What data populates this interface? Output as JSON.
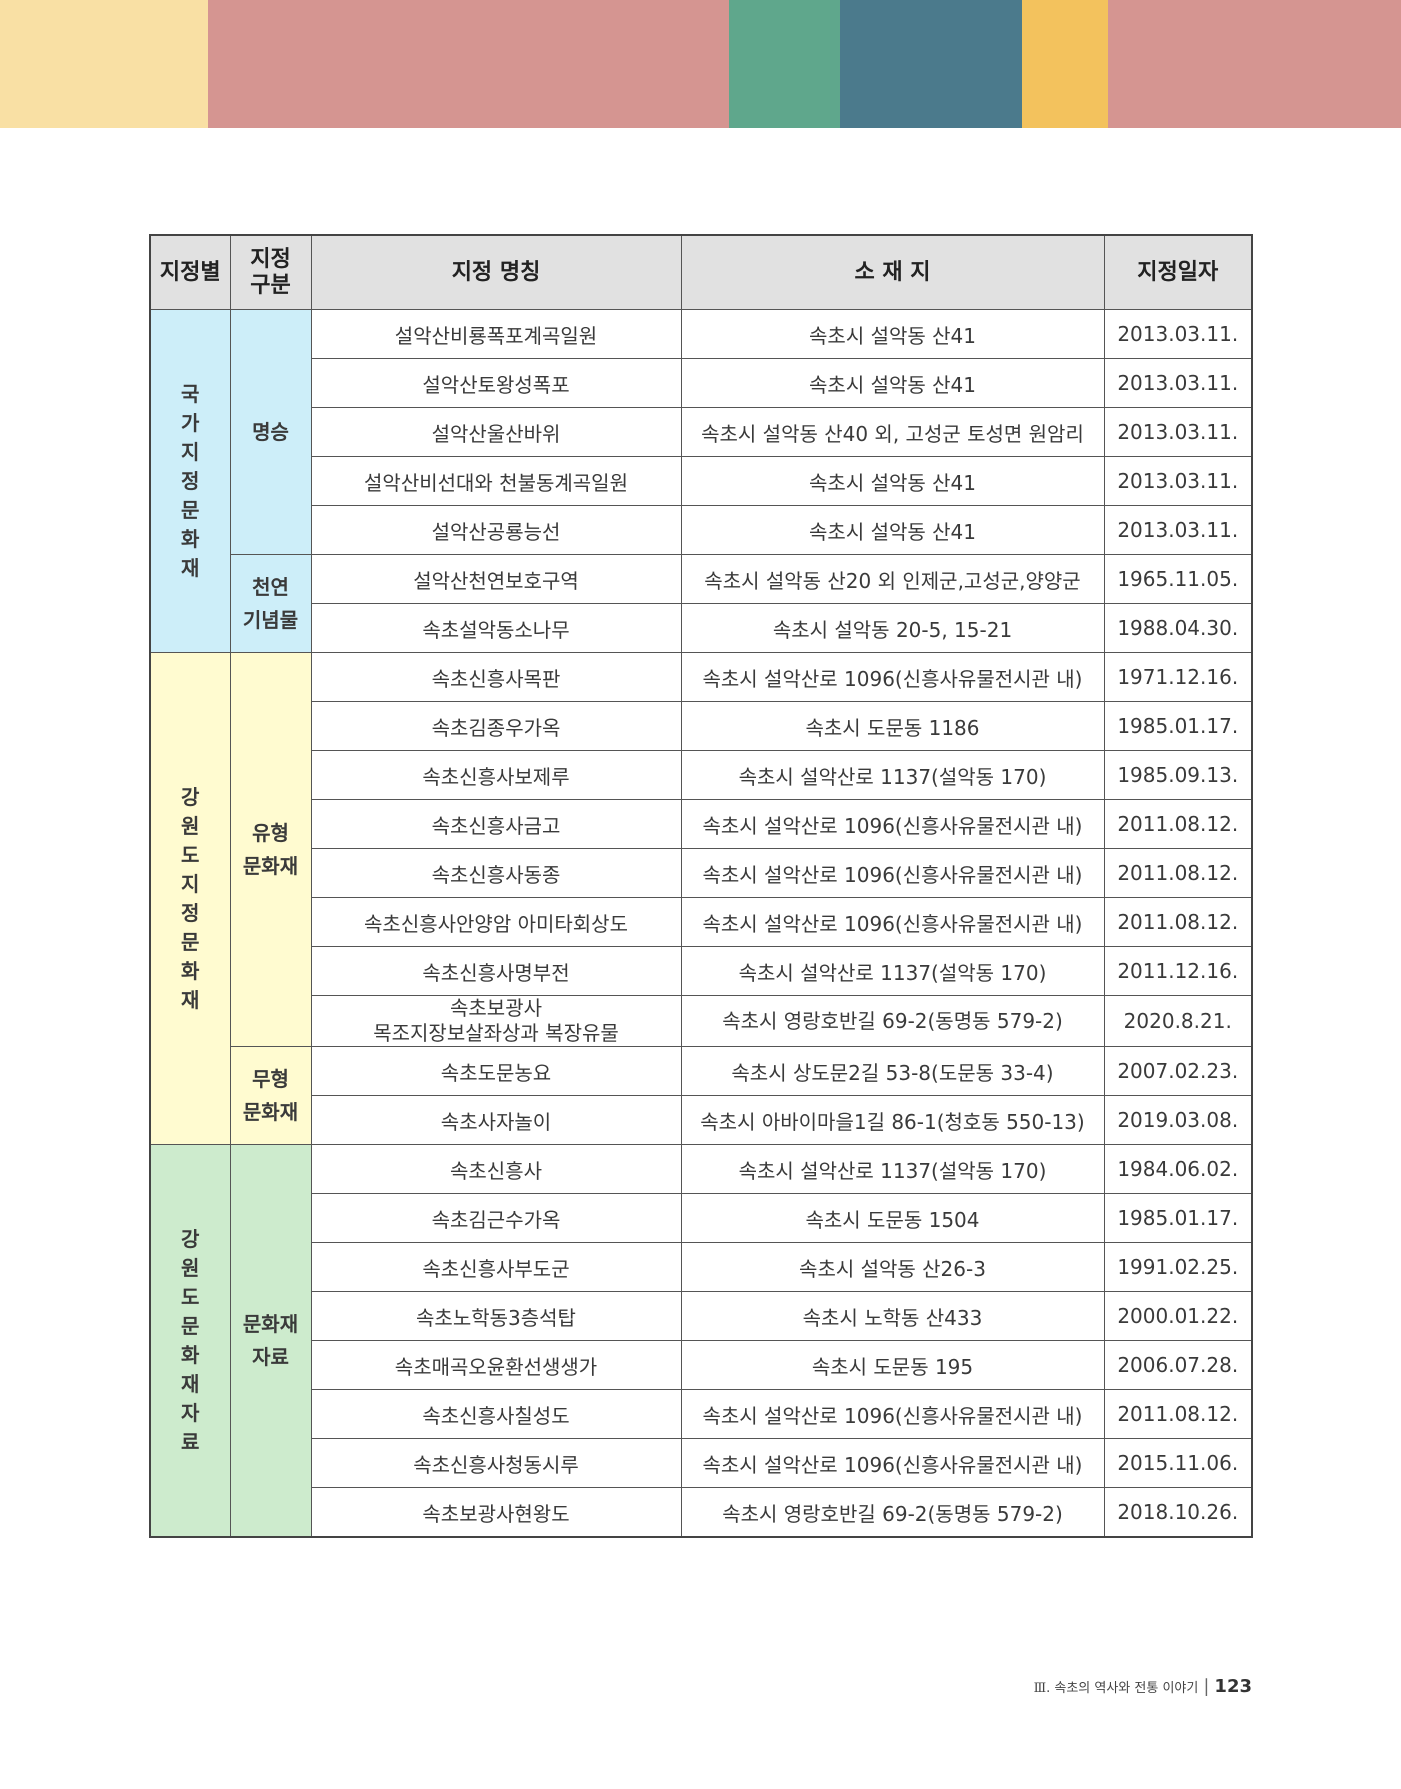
{
  "colors": {
    "top_bar": [
      "#f9e0a4",
      "#d59591",
      "#5fa78c",
      "#4b7a8c",
      "#f3c25d",
      "#d59591"
    ],
    "header_bg": "#e1e1e1",
    "group_national": "#cdeef9",
    "group_provincial": "#fffbd0",
    "group_material": "#cdebcd"
  },
  "table": {
    "headers": {
      "category": "지정별",
      "subcategory_line1": "지정",
      "subcategory_line2": "구분",
      "name": "지정 명칭",
      "location": "소 재 지",
      "date": "지정일자"
    },
    "groups": [
      {
        "category": "국가지정문화재",
        "subgroups": [
          {
            "label_lines": [
              "명승"
            ],
            "rows": [
              {
                "name": [
                  "설악산비룡폭포계곡일원"
                ],
                "location": "속초시 설악동 산41",
                "date": "2013.03.11."
              },
              {
                "name": [
                  "설악산토왕성폭포"
                ],
                "location": "속초시 설악동 산41",
                "date": "2013.03.11."
              },
              {
                "name": [
                  "설악산울산바위"
                ],
                "location": "속초시 설악동 산40 외, 고성군 토성면 원암리",
                "date": "2013.03.11."
              },
              {
                "name": [
                  "설악산비선대와 천불동계곡일원"
                ],
                "location": "속초시 설악동 산41",
                "date": "2013.03.11."
              },
              {
                "name": [
                  "설악산공룡능선"
                ],
                "location": "속초시 설악동 산41",
                "date": "2013.03.11."
              }
            ]
          },
          {
            "label_lines": [
              "천연",
              "기념물"
            ],
            "rows": [
              {
                "name": [
                  "설악산천연보호구역"
                ],
                "location": "속초시 설악동 산20 외 인제군,고성군,양양군",
                "date": "1965.11.05."
              },
              {
                "name": [
                  "속초설악동소나무"
                ],
                "location": "속초시 설악동 20-5, 15-21",
                "date": "1988.04.30."
              }
            ]
          }
        ]
      },
      {
        "category": "강원도지정문화재",
        "subgroups": [
          {
            "label_lines": [
              "유형",
              "문화재"
            ],
            "rows": [
              {
                "name": [
                  "속초신흥사목판"
                ],
                "location": "속초시 설악산로 1096(신흥사유물전시관 내)",
                "date": "1971.12.16."
              },
              {
                "name": [
                  "속초김종우가옥"
                ],
                "location": "속초시 도문동 1186",
                "date": "1985.01.17."
              },
              {
                "name": [
                  "속초신흥사보제루"
                ],
                "location": "속초시 설악산로 1137(설악동 170)",
                "date": "1985.09.13."
              },
              {
                "name": [
                  "속초신흥사금고"
                ],
                "location": "속초시 설악산로 1096(신흥사유물전시관 내)",
                "date": "2011.08.12."
              },
              {
                "name": [
                  "속초신흥사동종"
                ],
                "location": "속초시 설악산로 1096(신흥사유물전시관 내)",
                "date": "2011.08.12."
              },
              {
                "name": [
                  "속초신흥사안양암 아미타회상도"
                ],
                "location": "속초시 설악산로 1096(신흥사유물전시관 내)",
                "date": "2011.08.12."
              },
              {
                "name": [
                  "속초신흥사명부전"
                ],
                "location": "속초시 설악산로 1137(설악동 170)",
                "date": "2011.12.16."
              },
              {
                "name": [
                  "속초보광사",
                  "목조지장보살좌상과 복장유물"
                ],
                "location": "속초시 영랑호반길 69-2(동명동 579-2)",
                "date": "2020.8.21."
              }
            ]
          },
          {
            "label_lines": [
              "무형",
              "문화재"
            ],
            "rows": [
              {
                "name": [
                  "속초도문농요"
                ],
                "location": "속초시 상도문2길 53-8(도문동 33-4)",
                "date": "2007.02.23."
              },
              {
                "name": [
                  "속초사자놀이"
                ],
                "location": "속초시 아바이마을1길 86-1(청호동 550-13)",
                "date": "2019.03.08."
              }
            ]
          }
        ]
      },
      {
        "category": "강원도문화재자료",
        "subgroups": [
          {
            "label_lines": [
              "문화재",
              "자료"
            ],
            "rows": [
              {
                "name": [
                  "속초신흥사"
                ],
                "location": "속초시 설악산로 1137(설악동 170)",
                "date": "1984.06.02."
              },
              {
                "name": [
                  "속초김근수가옥"
                ],
                "location": "속초시 도문동 1504",
                "date": "1985.01.17."
              },
              {
                "name": [
                  "속초신흥사부도군"
                ],
                "location": "속초시 설악동 산26-3",
                "date": "1991.02.25."
              },
              {
                "name": [
                  "속초노학동3층석탑"
                ],
                "location": "속초시 노학동 산433",
                "date": "2000.01.22."
              },
              {
                "name": [
                  "속초매곡오윤환선생생가"
                ],
                "location": "속초시 도문동 195",
                "date": "2006.07.28."
              },
              {
                "name": [
                  "속초신흥사칠성도"
                ],
                "location": "속초시 설악산로 1096(신흥사유물전시관 내)",
                "date": "2011.08.12."
              },
              {
                "name": [
                  "속초신흥사청동시루"
                ],
                "location": "속초시 설악산로 1096(신흥사유물전시관 내)",
                "date": "2015.11.06."
              },
              {
                "name": [
                  "속초보광사현왕도"
                ],
                "location": "속초시 영랑호반길 69-2(동명동 579-2)",
                "date": "2018.10.26."
              }
            ]
          }
        ]
      }
    ]
  },
  "footer": {
    "chapter": "Ⅲ. 속초의 역사와 전통 이야기",
    "separator": "|",
    "page": "123"
  }
}
